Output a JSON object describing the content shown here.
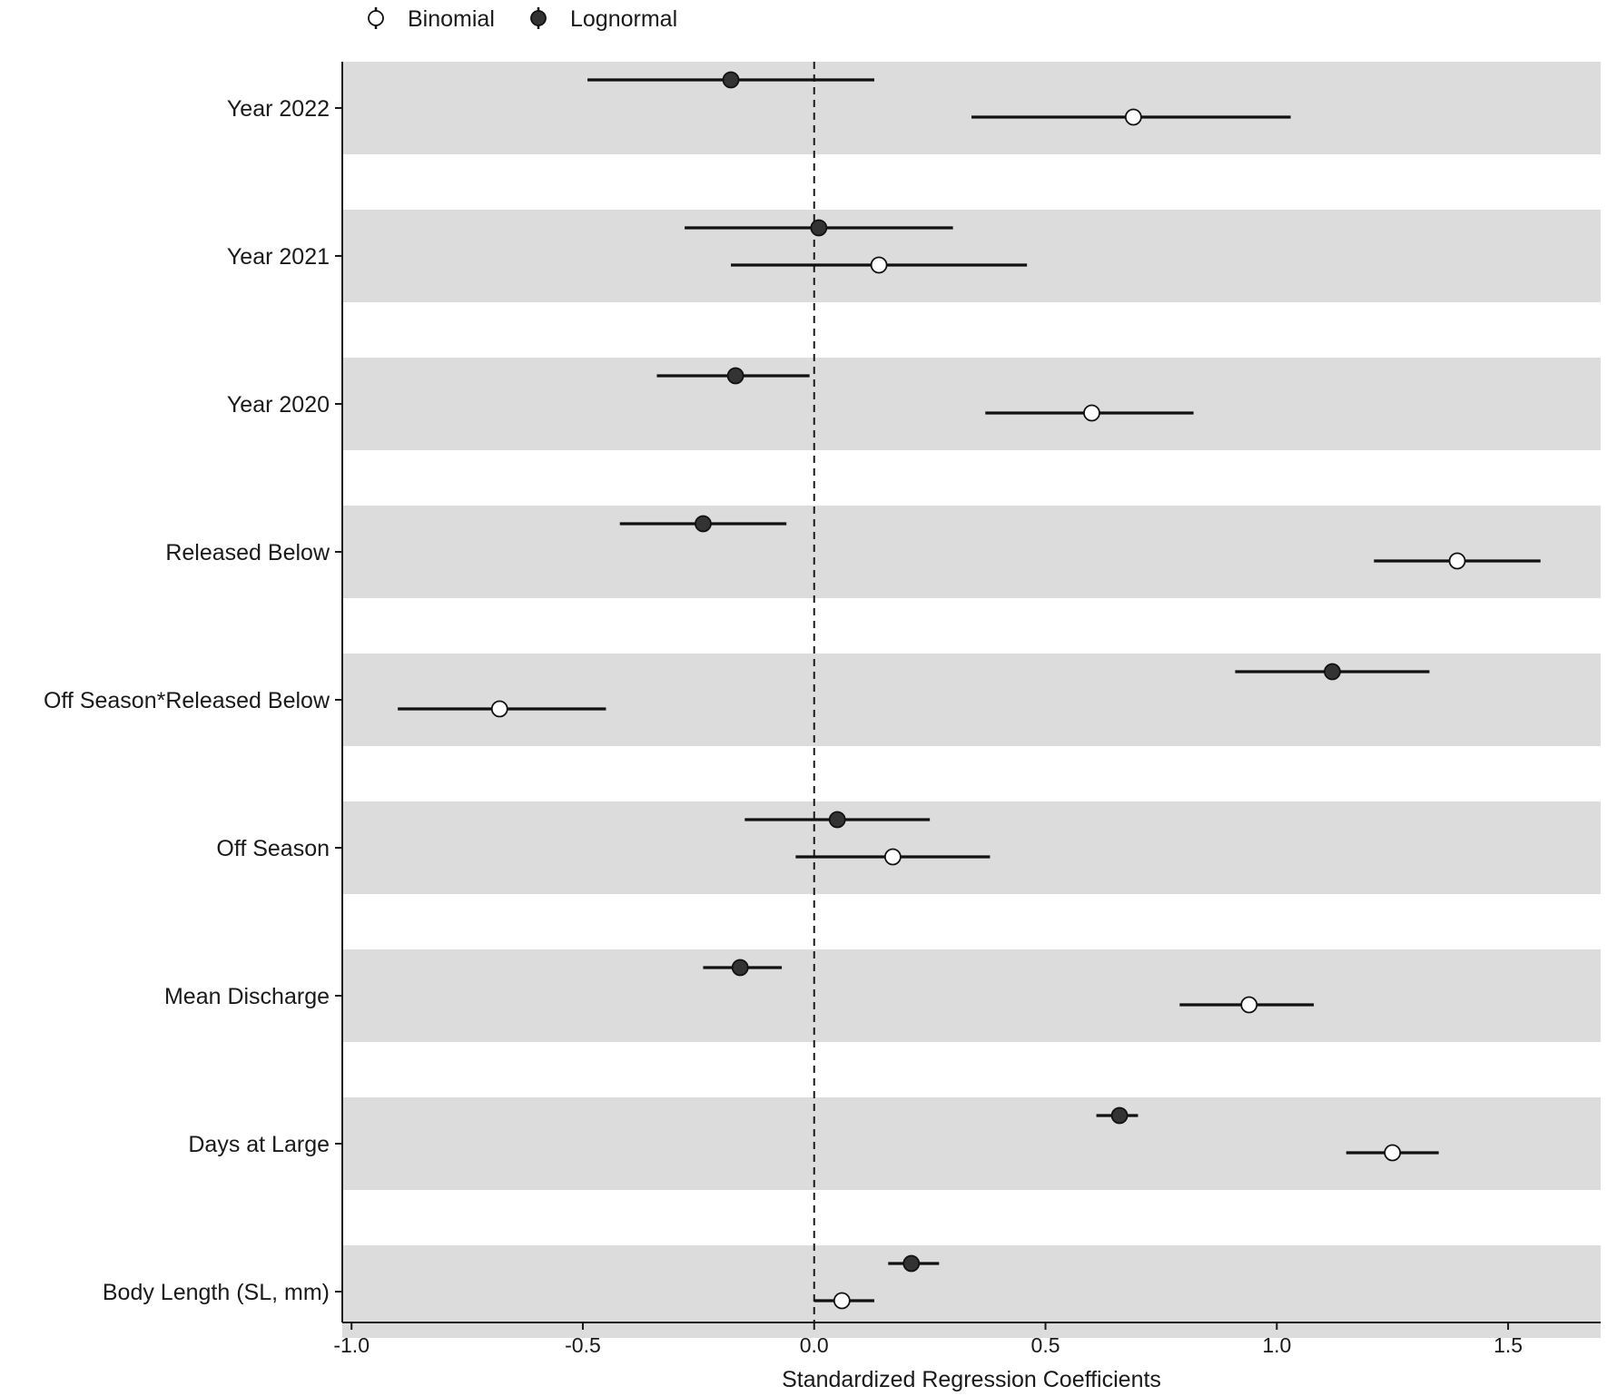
{
  "chart_data": {
    "type": "forest",
    "title": "",
    "xlabel": "Standardized Regression Coefficients",
    "ylabel": "",
    "xlim": [
      -1.02,
      1.7
    ],
    "xticks": [
      -1.0,
      -0.5,
      0.0,
      0.5,
      1.0,
      1.5
    ],
    "xtick_labels": [
      "-1.0",
      "-0.5",
      "0.0",
      "0.5",
      "1.0",
      "1.5"
    ],
    "reference_line": 0.0,
    "legend": {
      "position": "top-left",
      "entries": [
        {
          "name": "Binomial",
          "marker": "open-circle"
        },
        {
          "name": "Lognormal",
          "marker": "filled-circle"
        }
      ]
    },
    "categories": [
      "Year 2022",
      "Year 2021",
      "Year 2020",
      "Released Below",
      "Off Season*Released Below",
      "Off Season",
      "Mean Discharge",
      "Days at Large",
      "Body Length (SL, mm)"
    ],
    "series": [
      {
        "name": "Lognormal",
        "color": "#333333",
        "estimates": [
          -0.18,
          0.01,
          -0.17,
          -0.24,
          1.12,
          0.05,
          -0.16,
          0.66,
          0.21
        ],
        "lower": [
          -0.49,
          -0.28,
          -0.34,
          -0.42,
          0.91,
          -0.15,
          -0.24,
          0.61,
          0.16
        ],
        "upper": [
          0.13,
          0.3,
          -0.01,
          -0.06,
          1.33,
          0.25,
          -0.07,
          0.7,
          0.27
        ]
      },
      {
        "name": "Binomial",
        "color": "#ffffff",
        "estimates": [
          0.69,
          0.14,
          0.6,
          1.39,
          -0.68,
          0.17,
          0.94,
          1.25,
          0.06
        ],
        "lower": [
          0.34,
          -0.18,
          0.37,
          1.21,
          -0.9,
          -0.04,
          0.79,
          1.15,
          0.0
        ],
        "upper": [
          1.03,
          0.46,
          0.82,
          1.57,
          -0.45,
          0.38,
          1.08,
          1.35,
          0.13
        ]
      }
    ]
  },
  "colors": {
    "band": "#dcdcdc",
    "axis": "#1a1a1a",
    "lognormal_fill": "#333333",
    "binomial_fill": "#ffffff"
  }
}
